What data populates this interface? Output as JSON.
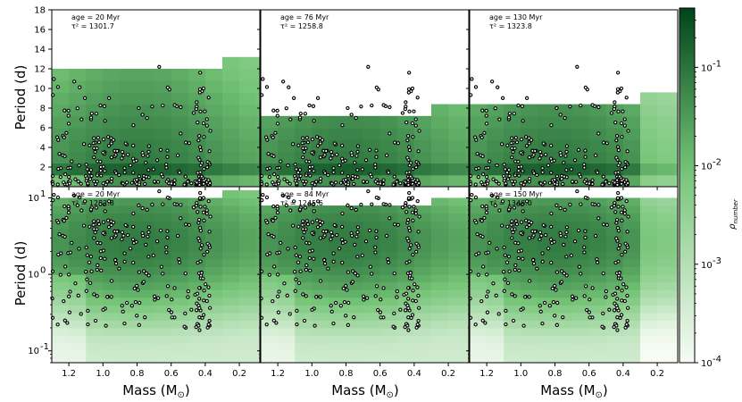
{
  "chart_data": [
    {
      "type": "heatmap",
      "panel": "top-left",
      "age_label": "age = 20 Myr",
      "tau_label": "τ² = 1301.7",
      "yscale": "linear",
      "ylim": [
        0,
        18
      ],
      "xlim": [
        1.3,
        0.08
      ]
    },
    {
      "type": "heatmap",
      "panel": "top-middle",
      "age_label": "age = 76 Myr",
      "tau_label": "τ² = 1258.8",
      "yscale": "linear",
      "ylim": [
        0,
        18
      ],
      "xlim": [
        1.3,
        0.08
      ]
    },
    {
      "type": "heatmap",
      "panel": "top-right",
      "age_label": "age = 130 Myr",
      "tau_label": "τ² = 1323.8",
      "yscale": "linear",
      "ylim": [
        0,
        18
      ],
      "xlim": [
        1.3,
        0.08
      ]
    },
    {
      "type": "heatmap",
      "panel": "bottom-left",
      "age_label": "age = 20 Myr",
      "tau_label": "τ² = 1282.8",
      "yscale": "log",
      "ylim": [
        0.07,
        14
      ],
      "xlim": [
        1.3,
        0.08
      ]
    },
    {
      "type": "heatmap",
      "panel": "bottom-middle",
      "age_label": "age = 84 Myr",
      "tau_label": "τ² = 1245.6",
      "yscale": "log",
      "ylim": [
        0.07,
        14
      ],
      "xlim": [
        1.3,
        0.08
      ]
    },
    {
      "type": "heatmap",
      "panel": "bottom-right",
      "age_label": "age = 150 Myr",
      "tau_label": "τ² = 1346.0",
      "yscale": "log",
      "ylim": [
        0.07,
        14
      ],
      "xlim": [
        1.3,
        0.08
      ]
    }
  ],
  "axes": {
    "xlabel": "Mass (M",
    "xlabel_sub": "⊙",
    "xlabel_close": ")",
    "ylabel": "Period (d)",
    "x_ticks": [
      "1.2",
      "1.0",
      "0.8",
      "0.6",
      "0.4",
      "0.2"
    ],
    "x_tick_values": [
      1.2,
      1.0,
      0.8,
      0.6,
      0.4,
      0.2
    ],
    "top_y_ticks": [
      "2",
      "4",
      "6",
      "8",
      "10",
      "12",
      "14",
      "16",
      "18"
    ],
    "top_y_tick_values": [
      2,
      4,
      6,
      8,
      10,
      12,
      14,
      16,
      18
    ],
    "bottom_y_ticks": [
      "10",
      "10",
      "10"
    ],
    "bottom_y_tick_exps": [
      "1",
      "0",
      "-1"
    ],
    "bottom_y_tick_values": [
      10,
      1,
      0.1
    ]
  },
  "colorbar": {
    "label": "ρ",
    "label_sub": "number",
    "ticks": [
      "10",
      "10",
      "10",
      "10"
    ],
    "tick_exps": [
      "-1",
      "-2",
      "-3",
      "-4"
    ],
    "tick_values": [
      0.1,
      0.01,
      0.001,
      0.0001
    ],
    "vmin": 0.0001,
    "vmax": 0.4,
    "color_low": "#f7fcf5",
    "color_high": "#00441b"
  }
}
